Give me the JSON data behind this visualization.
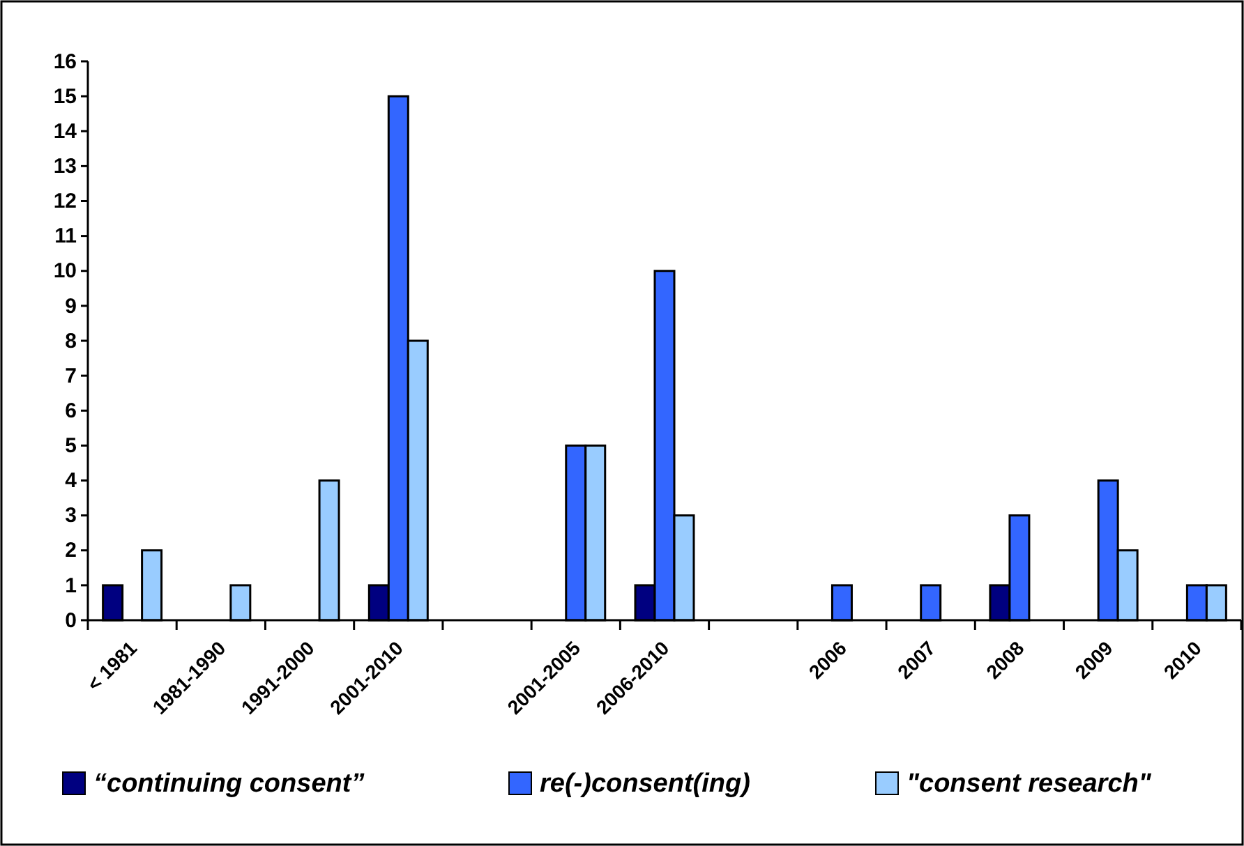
{
  "chart_data": {
    "type": "bar",
    "categories": [
      "< 1981",
      "1981-1990",
      "1991-2000",
      "2001-2010",
      null,
      "2001-2005",
      "2006-2010",
      null,
      "2006",
      "2007",
      "2008",
      "2009",
      "2010"
    ],
    "series": [
      {
        "name": "“continuing consent”",
        "color": "#000080",
        "values": [
          1,
          0,
          0,
          1,
          null,
          0,
          1,
          null,
          0,
          0,
          1,
          0,
          0
        ]
      },
      {
        "name": "re(-)consent(ing)",
        "color": "#3366ff",
        "values": [
          0,
          0,
          0,
          15,
          null,
          5,
          10,
          null,
          1,
          1,
          3,
          4,
          1
        ]
      },
      {
        "name": "\"consent research\"",
        "color": "#99ccff",
        "values": [
          2,
          1,
          4,
          8,
          null,
          5,
          3,
          null,
          0,
          0,
          0,
          2,
          1
        ]
      }
    ],
    "ylim": [
      0,
      16
    ],
    "yticks": [
      0,
      1,
      2,
      3,
      4,
      5,
      6,
      7,
      8,
      9,
      10,
      11,
      12,
      13,
      14,
      15,
      16
    ],
    "grid": false,
    "legend": "bottom"
  }
}
